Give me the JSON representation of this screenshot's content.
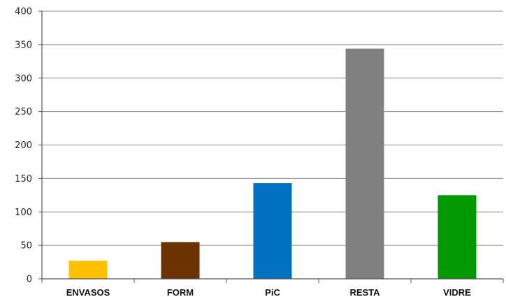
{
  "chart_data": {
    "type": "bar",
    "title": "",
    "xlabel": "",
    "ylabel": "",
    "categories": [
      "ENVASOS",
      "FORM",
      "PiC",
      "RESTA",
      "VIDRE"
    ],
    "values": [
      27,
      55,
      143,
      344,
      125
    ],
    "colors": [
      "#FFC000",
      "#6B3300",
      "#0070C0",
      "#808080",
      "#009900"
    ],
    "ylim": [
      0,
      400
    ],
    "yticks": [
      0,
      50,
      100,
      150,
      200,
      250,
      300,
      350,
      400
    ],
    "grid": true,
    "legend": "none"
  }
}
